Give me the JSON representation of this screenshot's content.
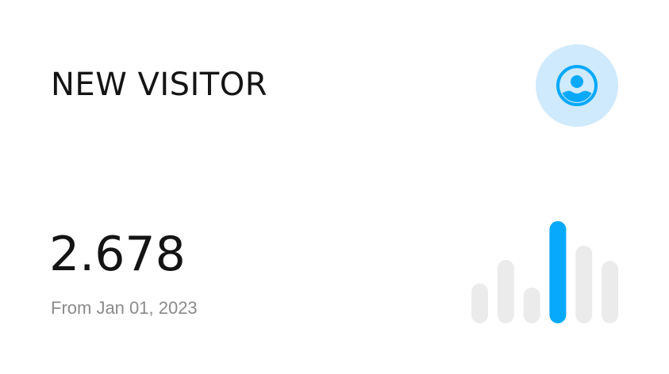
{
  "card": {
    "title": "NEW VISITOR",
    "icon": "user-circle-icon",
    "value": "2.678",
    "subtitle": "From Jan 01, 2023"
  },
  "colors": {
    "accent": "#06a9fc",
    "accent_bg": "#cfeafc",
    "bar_inactive": "#ebebeb"
  },
  "chart_data": {
    "type": "bar",
    "values": [
      0.39,
      0.62,
      0.35,
      1.0,
      0.76,
      0.61
    ],
    "highlighted_index": 3,
    "ylim": [
      0,
      1
    ]
  }
}
